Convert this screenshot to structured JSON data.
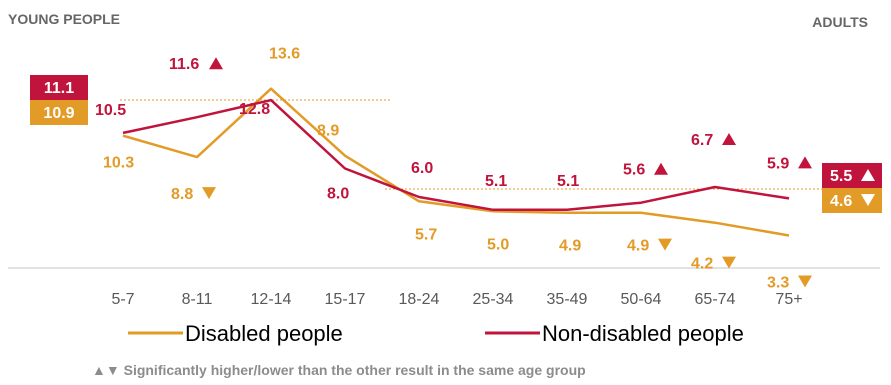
{
  "chart_data": {
    "type": "line",
    "header_left": "YOUNG PEOPLE",
    "header_right": "ADULTS",
    "categories": [
      "5-7",
      "8-11",
      "12-14",
      "15-17",
      "18-24",
      "25-34",
      "35-49",
      "50-64",
      "65-74",
      "75+"
    ],
    "series": [
      {
        "name": "Disabled people",
        "color": "#e39b27",
        "values": [
          10.3,
          8.8,
          13.6,
          8.9,
          5.7,
          5.0,
          4.9,
          4.9,
          4.2,
          3.3
        ],
        "labels": [
          "10.3",
          "8.8",
          "13.6",
          "8.9",
          "5.7",
          "5.0",
          "4.9",
          "4.9",
          "4.2",
          "3.3"
        ],
        "markers": [
          "",
          "down",
          "",
          "",
          "",
          "",
          "",
          "down",
          "down",
          "down"
        ]
      },
      {
        "name": "Non-disabled people",
        "color": "#c0143c",
        "values": [
          10.5,
          11.6,
          12.8,
          8.0,
          6.0,
          5.1,
          5.1,
          5.6,
          6.7,
          5.9
        ],
        "labels": [
          "10.5",
          "11.6",
          "12.8",
          "8.0",
          "6.0",
          "5.1",
          "5.1",
          "5.6",
          "6.7",
          "5.9"
        ],
        "markers": [
          "",
          "up",
          "",
          "",
          "",
          "",
          "",
          "up",
          "up",
          "up"
        ]
      }
    ],
    "averages": {
      "young": {
        "disabled": "10.9",
        "non_disabled": "11.1"
      },
      "adults": {
        "disabled": "4.6",
        "non_disabled": "5.5"
      }
    },
    "footnote": "▲▼ Significantly higher/lower than the other result in the same age group"
  }
}
